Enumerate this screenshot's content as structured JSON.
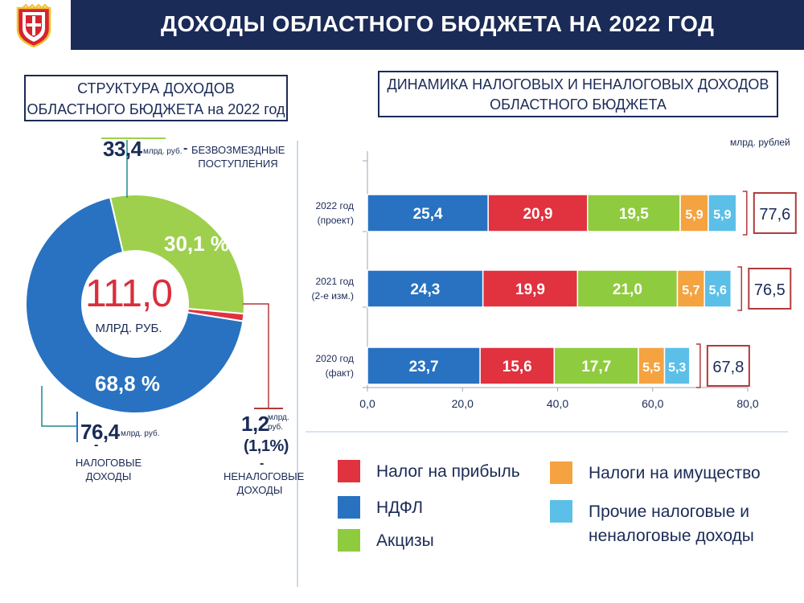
{
  "header": {
    "title": "ДОХОДЫ ОБЛАСТНОГО БЮДЖЕТА НА 2022 ГОД",
    "emblem_icon": "coat-of-arms-icon"
  },
  "left_panel": {
    "title_line1": "СТРУКТУРА ДОХОДОВ",
    "title_line2": "ОБЛАСТНОГО БЮДЖЕТА на 2022 год"
  },
  "right_panel": {
    "title_line1": "ДИНАМИКА  НАЛОГОВЫХ И НЕНАЛОГОВЫХ ДОХОДОВ",
    "title_line2": "ОБЛАСТНОГО БЮДЖЕТА",
    "unit": "млрд. рублей"
  },
  "donut_labels": {
    "center_value": "111,0",
    "center_unit": "МЛРД. РУБ.",
    "gratuitous_value": "33,4",
    "gratuitous_unit": "млрд. руб.",
    "gratuitous_dash": "-",
    "gratuitous_caption_line1": "БЕЗВОЗМЕЗДНЫЕ",
    "gratuitous_caption_line2": "ПОСТУПЛЕНИЯ",
    "tax_value": "76,4",
    "tax_unit": "млрд. руб.",
    "tax_dash": "-",
    "tax_caption_line1": "НАЛОГОВЫЕ",
    "tax_caption_line2": "ДОХОДЫ",
    "nontax_value": "1,2",
    "nontax_unit_line1": "млрд.",
    "nontax_unit_line2": "руб.",
    "nontax_pct": "(1,1%)",
    "nontax_dash": "-",
    "nontax_caption_line1": "НЕНАЛОГОВЫЕ",
    "nontax_caption_line2": "ДОХОДЫ"
  },
  "chart_data": [
    {
      "type": "pie",
      "title": "СТРУКТУРА ДОХОДОВ ОБЛАСТНОГО БЮДЖЕТА на 2022 год",
      "total": 111.0,
      "slices": [
        {
          "name": "НАЛОГОВЫЕ ДОХОДЫ",
          "value": 76.4,
          "percent": 68.8,
          "label": "68,8 %",
          "color": "#2872c1"
        },
        {
          "name": "БЕЗВОЗМЕЗДНЫЕ ПОСТУПЛЕНИЯ",
          "value": 33.4,
          "percent": 30.1,
          "label": "30,1 %",
          "color": "#9ed04e"
        },
        {
          "name": "НЕНАЛОГОВЫЕ ДОХОДЫ",
          "value": 1.2,
          "percent": 1.1,
          "label": "",
          "color": "#e0323f"
        }
      ]
    },
    {
      "type": "bar",
      "orientation": "horizontal",
      "stacked": true,
      "title": "ДИНАМИКА  НАЛОГОВЫХ И НЕНАЛОГОВЫХ ДОХОДОВ ОБЛАСТНОГО БЮДЖЕТА",
      "categories": [
        {
          "line1": "2022 год",
          "line2": "(проект)"
        },
        {
          "line1": "2021 год",
          "line2": "(2-е изм.)"
        },
        {
          "line1": "2020 год",
          "line2": "(факт)"
        }
      ],
      "series": [
        {
          "name": "НДФЛ",
          "color": "#2872c1",
          "values": [
            25.4,
            24.3,
            23.7
          ]
        },
        {
          "name": "Налог на прибыль",
          "color": "#e0323f",
          "values": [
            20.9,
            19.9,
            15.6
          ]
        },
        {
          "name": "Акцизы",
          "color": "#8fcb3f",
          "values": [
            19.5,
            21.0,
            17.7
          ]
        },
        {
          "name": "Налоги на имущество",
          "color": "#f4a340",
          "values": [
            5.9,
            5.7,
            5.5
          ]
        },
        {
          "name": "Прочие налоговые и неналоговые доходы",
          "color": "#5bbfe8",
          "values": [
            5.9,
            5.6,
            5.3
          ]
        }
      ],
      "value_labels": [
        [
          "25,4",
          "20,9",
          "19,5",
          "5,9",
          "5,9"
        ],
        [
          "24,3",
          "19,9",
          "21,0",
          "5,7",
          "5,6"
        ],
        [
          "23,7",
          "15,6",
          "17,7",
          "5,5",
          "5,3"
        ]
      ],
      "totals": [
        77.6,
        76.5,
        67.8
      ],
      "total_labels": [
        "77,6",
        "76,5",
        "67,8"
      ],
      "xlim": [
        0,
        80
      ],
      "xticks": [
        0,
        20,
        40,
        60,
        80
      ],
      "xtick_labels": [
        "0,0",
        "20,0",
        "40,0",
        "60,0",
        "80,0"
      ],
      "grid": true,
      "legend_position": "bottom"
    }
  ],
  "legend": [
    {
      "label_line1": "Налог на прибыль",
      "label_line2": "",
      "color": "#e0323f"
    },
    {
      "label_line1": "НДФЛ",
      "label_line2": "",
      "color": "#2872c1"
    },
    {
      "label_line1": "Акцизы",
      "label_line2": "",
      "color": "#8fcb3f"
    },
    {
      "label_line1": "Налоги на имущество",
      "label_line2": "",
      "color": "#f4a340"
    },
    {
      "label_line1": "Прочие налоговые и",
      "label_line2": "неналоговые доходы",
      "color": "#5bbfe8"
    }
  ],
  "colors": {
    "navy": "#1b2b57",
    "accent_red": "#d92e3c",
    "total_box_border": "#b23a3a"
  }
}
